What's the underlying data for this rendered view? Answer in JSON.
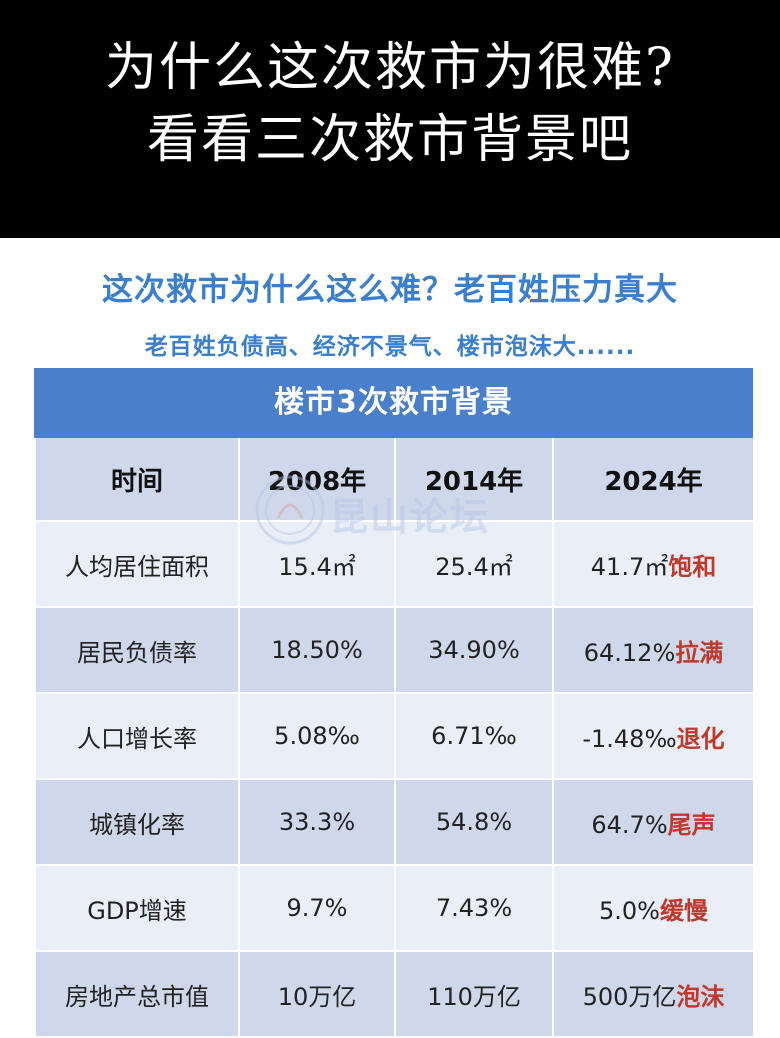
{
  "banner": {
    "line1": "为什么这次救市为很难?",
    "line2": "看看三次救市背景吧"
  },
  "headline": "这次救市为什么这么难？老百姓压力真大",
  "subheadline": "老百姓负债高、经济不景气、楼市泡沫大......",
  "table": {
    "title": "楼市3次救市背景",
    "headers": [
      "时间",
      "2008年",
      "2014年",
      "2024年"
    ],
    "rows": [
      {
        "label": "人均居住面积",
        "v2008": "15.4㎡",
        "v2014": "25.4㎡",
        "v2024": "41.7㎡",
        "trend": "饱和"
      },
      {
        "label": "居民负债率",
        "v2008": "18.50%",
        "v2014": "34.90%",
        "v2024": "64.12%",
        "trend": "拉满"
      },
      {
        "label": "人口增长率",
        "v2008": "5.08‰",
        "v2014": "6.71‰",
        "v2024": "-1.48‰",
        "trend": "退化"
      },
      {
        "label": "城镇化率",
        "v2008": "33.3%",
        "v2014": "54.8%",
        "v2024": "64.7%",
        "trend": "尾声"
      },
      {
        "label": "GDP增速",
        "v2008": "9.7%",
        "v2014": "7.43%",
        "v2024": "5.0%",
        "trend": "缓慢"
      },
      {
        "label": "房地产总市值",
        "v2008": "10万亿",
        "v2014": "110万亿",
        "v2024": "500万亿",
        "trend": "泡沫"
      }
    ]
  },
  "watermark": {
    "text": "昆山论坛",
    "icon": "seal-logo-icon"
  },
  "colors": {
    "accent_blue": "#3a7ecf",
    "table_title_bg": "#4a7fcc",
    "trend_red": "#c0392b"
  }
}
